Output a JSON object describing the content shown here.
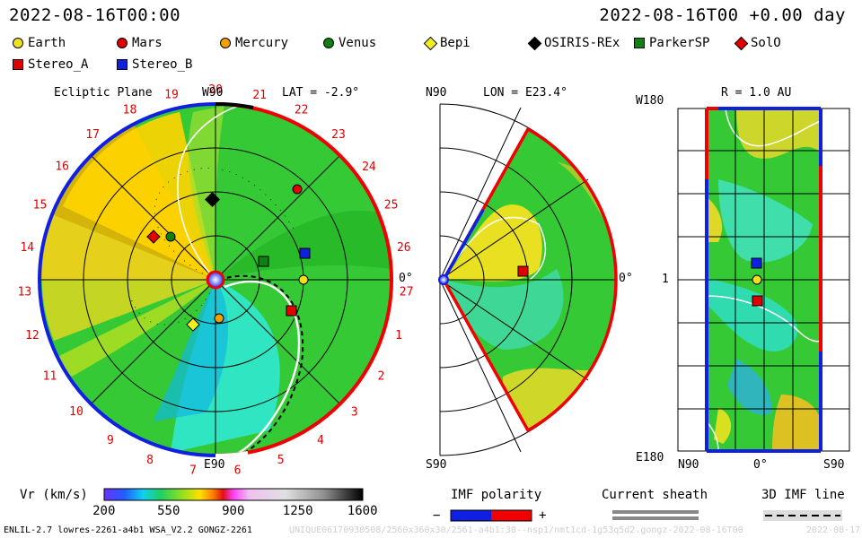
{
  "header": {
    "datetime": "2022-08-16T00:00",
    "elapsed": "2022-08-16T00 +0.00 day"
  },
  "legend": {
    "items": [
      {
        "label": "Earth",
        "shape": "circle",
        "color": "#f0e020"
      },
      {
        "label": "Mars",
        "shape": "circle",
        "color": "#e00000"
      },
      {
        "label": "Mercury",
        "shape": "circle",
        "color": "#f0a000"
      },
      {
        "label": "Venus",
        "shape": "circle",
        "color": "#108010"
      },
      {
        "label": "Bepi",
        "shape": "diamond",
        "color": "#f0f020"
      },
      {
        "label": "OSIRIS-REx",
        "shape": "diamond",
        "color": "#000000"
      },
      {
        "label": "ParkerSP",
        "shape": "square",
        "color": "#108010"
      },
      {
        "label": "SolO",
        "shape": "diamond",
        "color": "#e00000"
      },
      {
        "label": "Stereo_A",
        "shape": "square",
        "color": "#e00000"
      },
      {
        "label": "Stereo_B",
        "shape": "square",
        "color": "#1020e0"
      }
    ]
  },
  "ecliptic": {
    "title": "Ecliptic Plane",
    "lat_label": "LAT = -2.9°",
    "top_label": "W90",
    "bottom_label": "E90",
    "right_label": "0°",
    "rotation_numbers": [
      "19",
      "20",
      "21",
      "22",
      "23",
      "24",
      "25",
      "26",
      "27",
      "1",
      "2",
      "3",
      "4",
      "5",
      "6",
      "7",
      "8",
      "9",
      "10",
      "11",
      "12",
      "13",
      "14",
      "15",
      "16",
      "17",
      "18"
    ]
  },
  "meridional": {
    "top_left_label": "N90",
    "lon_label": "LON = E23.4°",
    "bottom_label": "S90",
    "right_label": "0°"
  },
  "radial": {
    "r_label": "R = 1.0 AU",
    "top_label": "W180",
    "bottom_label": "E180",
    "left_tick": "1",
    "x_left": "N90",
    "x_mid": "0°",
    "x_right": "S90"
  },
  "colorbar": {
    "title": "Vr (km/s)",
    "ticks": [
      "200",
      "550",
      "900",
      "1250",
      "1600"
    ],
    "min": 200,
    "max": 1600
  },
  "imf": {
    "title": "IMF polarity",
    "minus": "−",
    "plus": "+",
    "sheath_title": "Current sheath",
    "line_title": "3D IMF line"
  },
  "footer": {
    "left": "ENLIL-2.7 lowres-2261-a4b1 WSA_V2.2 GONGZ-2261",
    "watermark": "UNIQUE06170930508/2560x360x30/2561-a4b1:30--nsp1/nmt1cd-1g53q5d2.gongz-2022-08-16T00",
    "right": "2022-08-17"
  },
  "colors": {
    "slow_wind": "#2fc92f",
    "fast_wind": "#ffc600",
    "cyan_wind": "#30e8d0",
    "polarity_negative": "#1020e0",
    "polarity_positive": "#f00000"
  }
}
